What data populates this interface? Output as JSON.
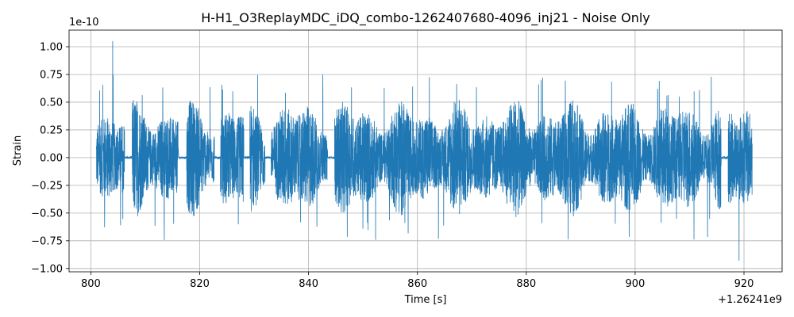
{
  "chart_data": {
    "type": "line",
    "title": "H-H1_O3ReplayMDC_iDQ_combo-1262407680-4096_inj21 - Noise Only",
    "xlabel": "Time [s]",
    "ylabel": "Strain",
    "x_offset_label": "+1.26241e9",
    "y_scale_label": "1e-10",
    "xlim": [
      796,
      927
    ],
    "ylim": [
      -1.03,
      1.15
    ],
    "x_ticks": [
      800,
      820,
      840,
      860,
      880,
      900,
      920
    ],
    "x_tick_labels": [
      "800",
      "820",
      "840",
      "860",
      "880",
      "900",
      "920"
    ],
    "y_ticks": [
      -1.0,
      -0.75,
      -0.5,
      -0.25,
      0.0,
      0.25,
      0.5,
      0.75,
      1.0
    ],
    "y_tick_labels": [
      "−1.00",
      "−0.75",
      "−0.50",
      "−0.25",
      "0.00",
      "0.25",
      "0.50",
      "0.75",
      "1.00"
    ],
    "grid": true,
    "series": [
      {
        "color": "#1f77b4",
        "x_range": [
          801.0,
          921.5
        ],
        "y_max": 1.05,
        "y_min": -0.93,
        "typical_peak": 0.5,
        "gaps": [
          [
            806.2,
            807.6
          ],
          [
            816.1,
            817.6
          ],
          [
            822.7,
            823.8
          ],
          [
            828.1,
            829.2
          ],
          [
            832.0,
            833.1
          ],
          [
            843.5,
            844.8
          ],
          [
            915.8,
            917.1
          ]
        ]
      }
    ]
  }
}
